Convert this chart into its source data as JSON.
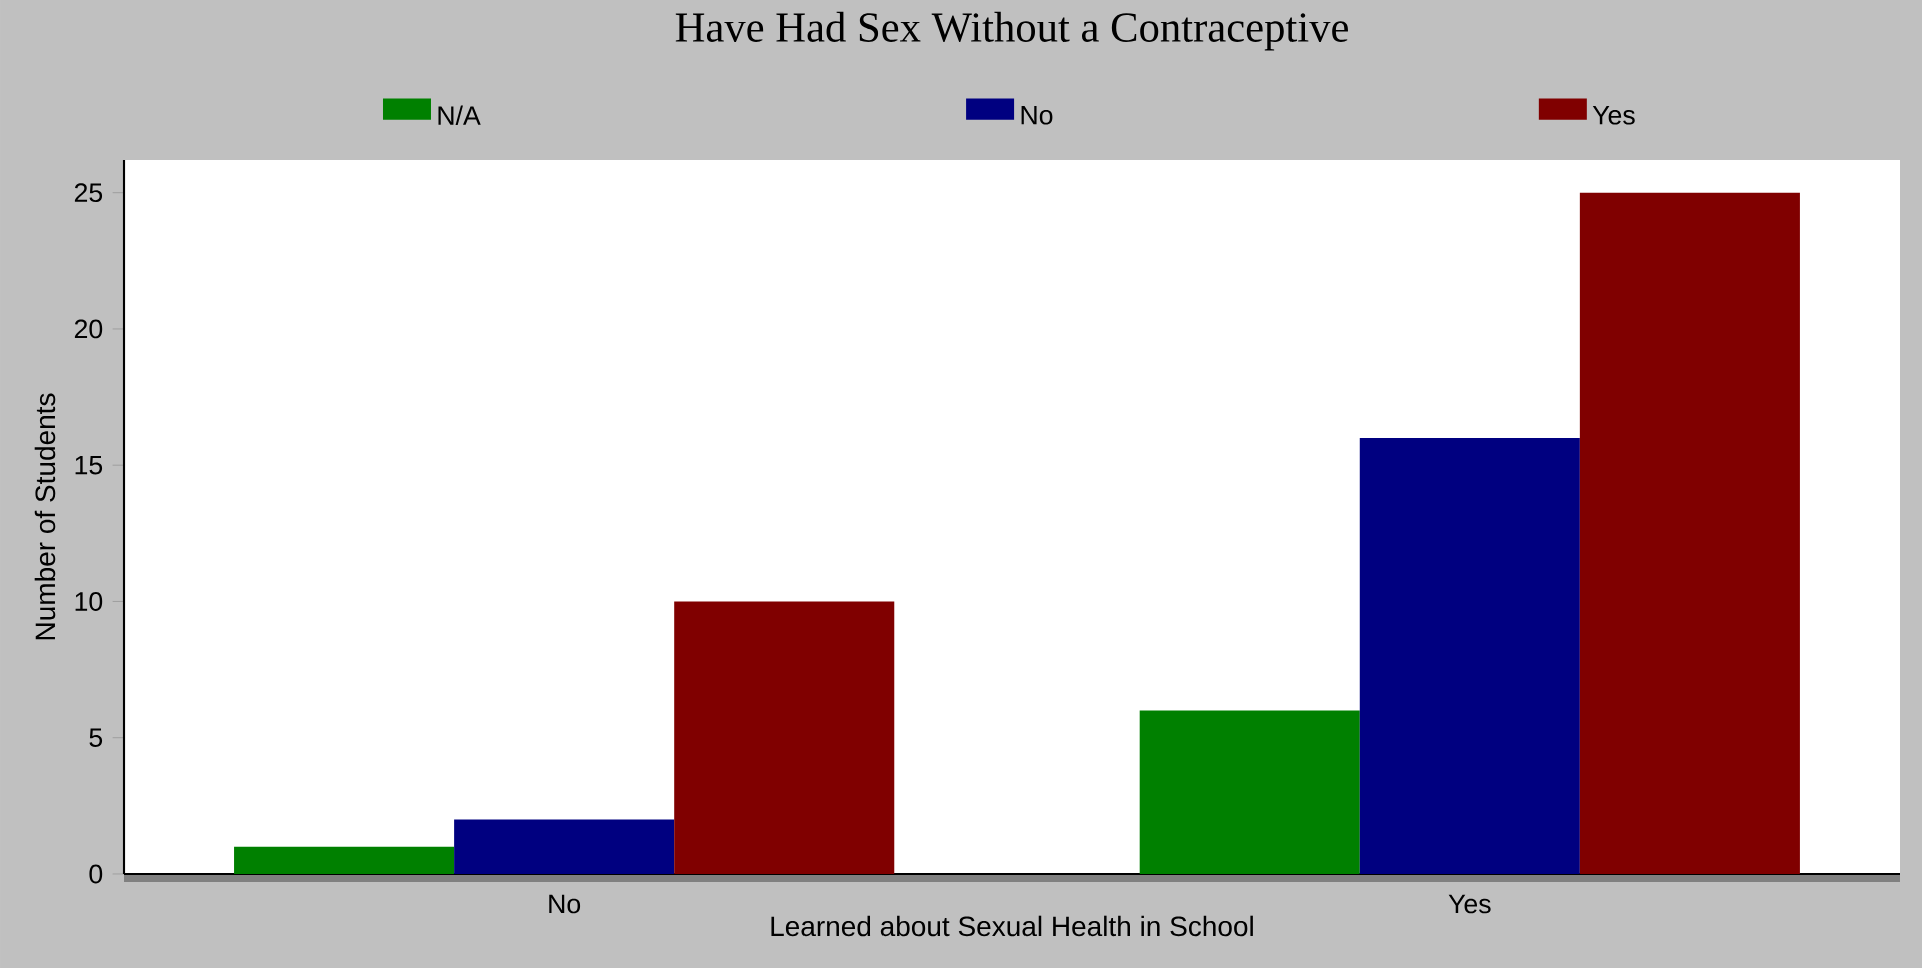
{
  "chart_data": {
    "type": "bar",
    "title": "Have Had Sex Without a Contraceptive",
    "xlabel": "Learned about Sexual Health in School",
    "ylabel": "Number of Students",
    "categories": [
      "No",
      "Yes"
    ],
    "series": [
      {
        "name": "N/A",
        "color": "#008000",
        "values": [
          1,
          6
        ]
      },
      {
        "name": "No",
        "color": "#000080",
        "values": [
          2,
          16
        ]
      },
      {
        "name": "Yes",
        "color": "#800000",
        "values": [
          10,
          25
        ]
      }
    ],
    "ylim": [
      0,
      26.2
    ],
    "yticks": [
      0,
      5,
      10,
      15,
      20,
      25
    ],
    "grid": false,
    "legend": "top"
  }
}
